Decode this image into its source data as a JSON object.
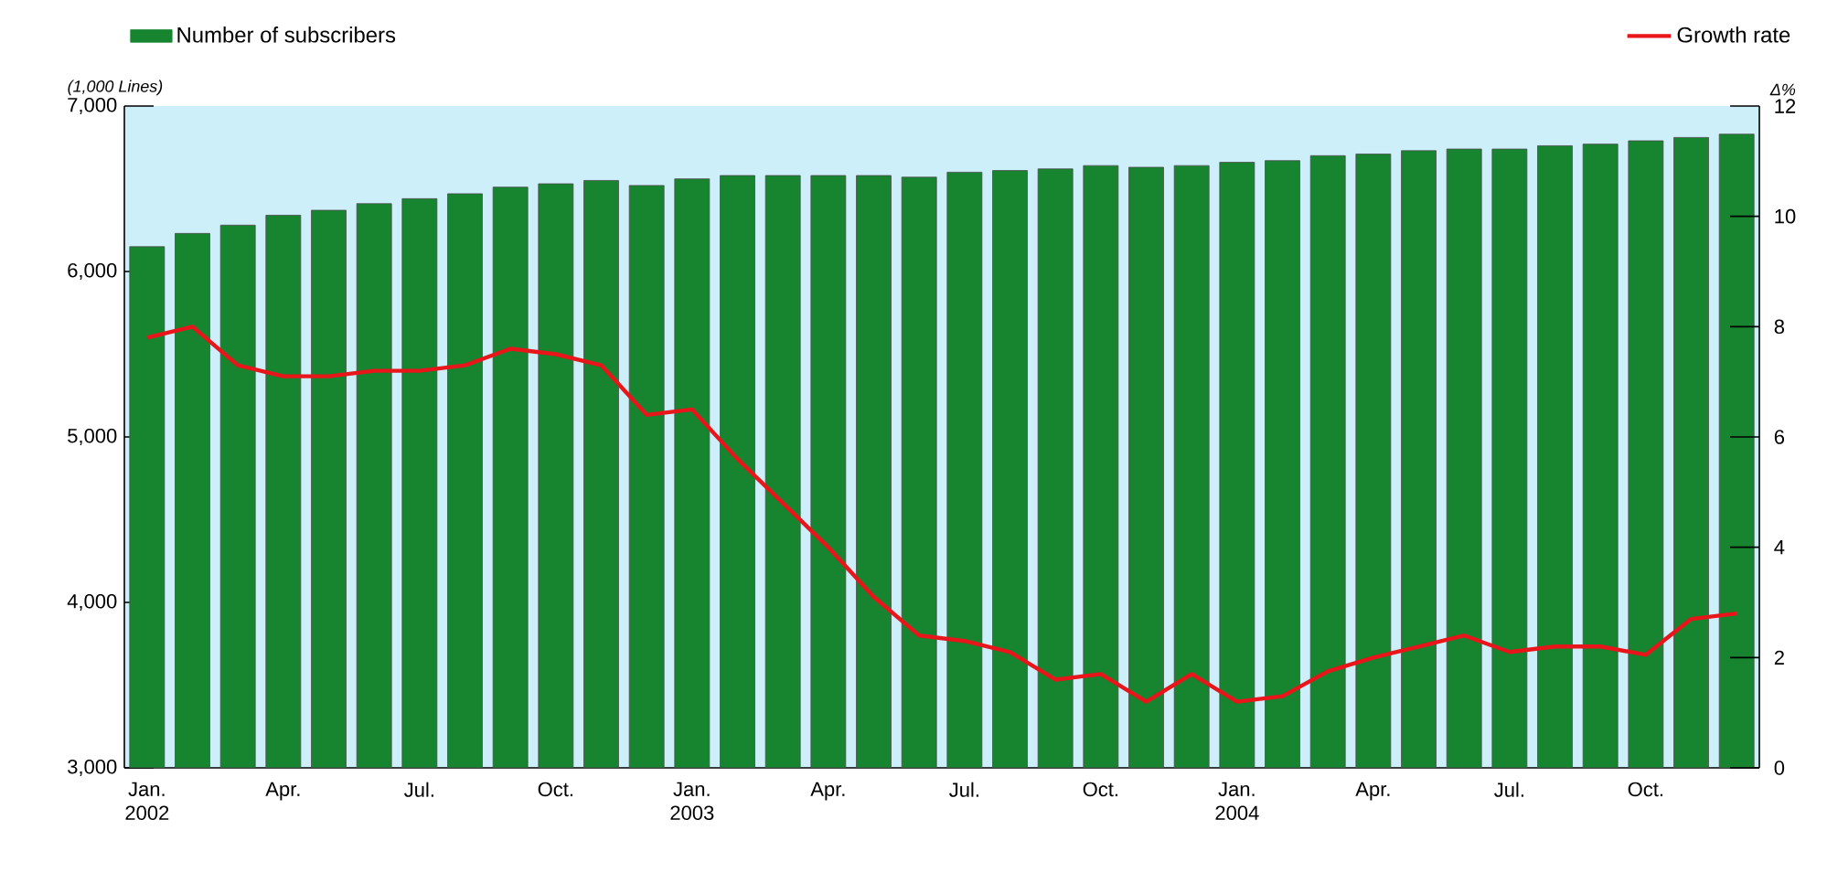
{
  "chart_data": {
    "type": "bar",
    "categories": [
      "Jan. 2002",
      null,
      null,
      "Apr.",
      null,
      null,
      "Jul.",
      null,
      null,
      "Oct.",
      null,
      null,
      "Jan. 2003",
      null,
      null,
      "Apr.",
      null,
      null,
      "Jul.",
      null,
      null,
      "Oct.",
      null,
      null,
      "Jan. 2004",
      null,
      null,
      "Apr.",
      null,
      null,
      "Jul.",
      null,
      null,
      "Oct.",
      null,
      null
    ],
    "series": [
      {
        "name": "Number of subscribers",
        "color": "#17842f",
        "values": [
          6150,
          6230,
          6280,
          6340,
          6370,
          6410,
          6440,
          6470,
          6510,
          6530,
          6550,
          6520,
          6560,
          6580,
          6580,
          6580,
          6580,
          6570,
          6600,
          6610,
          6620,
          6640,
          6630,
          6640,
          6660,
          6670,
          6700,
          6710,
          6730,
          6740,
          6740,
          6760,
          6770,
          6790,
          6810,
          6830
        ]
      },
      {
        "name": "Growth rate",
        "type": "line",
        "axis": "y2",
        "color": "#e8161b",
        "values": [
          7.8,
          8.0,
          7.3,
          7.1,
          7.1,
          7.2,
          7.2,
          7.3,
          7.6,
          7.5,
          7.3,
          6.4,
          6.5,
          5.6,
          4.8,
          4.0,
          3.1,
          2.4,
          2.3,
          2.1,
          1.6,
          1.7,
          1.2,
          1.7,
          1.2,
          1.3,
          1.75,
          2.0,
          2.2,
          2.4,
          2.1,
          2.2,
          2.2,
          2.05,
          2.7,
          2.8
        ]
      }
    ],
    "ylabel": "(1,000 Lines)",
    "y2label": "Δ%",
    "ylim": [
      3000,
      7000
    ],
    "yticks": [
      {
        "value": 3000,
        "label": "3,000"
      },
      {
        "value": 4000,
        "label": "4,000"
      },
      {
        "value": 5000,
        "label": "5,000"
      },
      {
        "value": 6000,
        "label": "6,000"
      },
      {
        "value": 7000,
        "label": "7,000"
      }
    ],
    "y2lim": [
      0,
      12
    ],
    "y2ticks": [
      0,
      2,
      4,
      6,
      8,
      10,
      12
    ],
    "legend": "top"
  }
}
